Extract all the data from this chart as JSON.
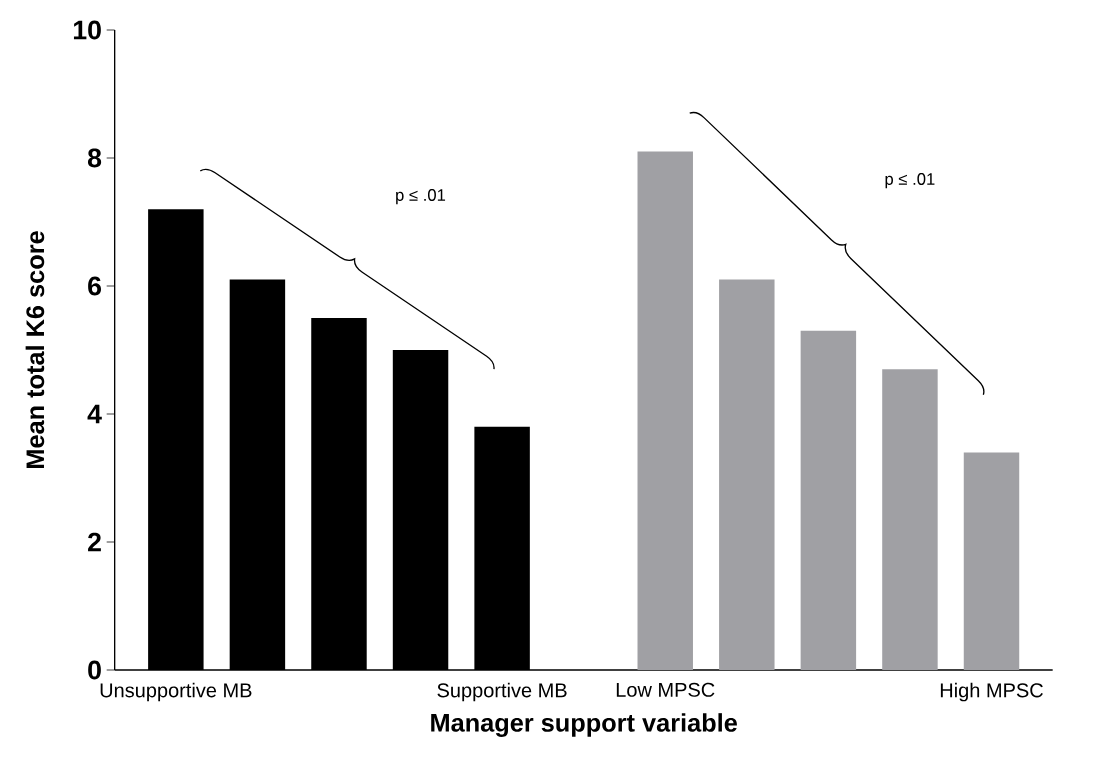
{
  "chart_data": {
    "type": "bar",
    "xlabel": "Manager support variable",
    "ylabel": "Mean total K6 score",
    "categories": [
      "Unsupportive MB",
      null,
      null,
      null,
      "Supportive MB",
      null,
      "Low MPSC",
      null,
      null,
      null,
      "High MPSC"
    ],
    "series": [
      {
        "color": "#000000",
        "values": [
          7.2,
          6.1,
          5.5,
          5.0,
          3.8,
          null,
          null,
          null,
          null,
          null,
          null
        ]
      },
      {
        "color": "#a0a0a4",
        "values": [
          null,
          null,
          null,
          null,
          null,
          null,
          8.1,
          6.1,
          5.3,
          4.7,
          3.4
        ]
      }
    ],
    "ylim": [
      0,
      10
    ],
    "yticks": [
      0,
      2,
      4,
      6,
      8,
      10
    ],
    "annotations": [
      "p ≤ .01",
      "p ≤ .01"
    ]
  }
}
